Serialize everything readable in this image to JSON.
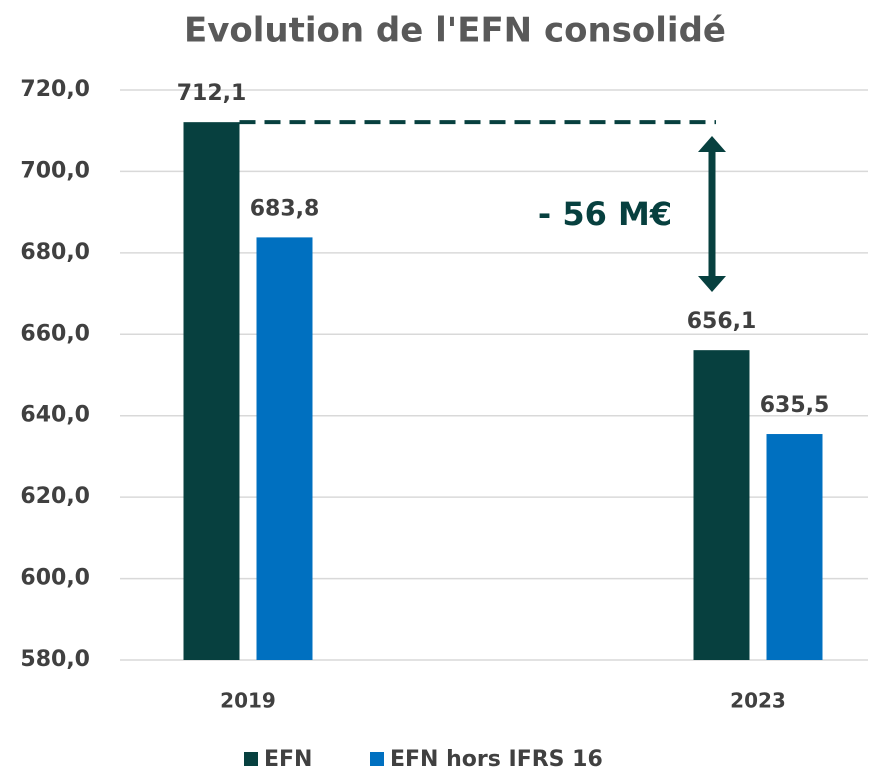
{
  "chart_data": {
    "type": "bar",
    "title": "Evolution de l'EFN consolidé",
    "categories": [
      "2019",
      "2023"
    ],
    "series": [
      {
        "name": "EFN",
        "color": "#07403f",
        "values": [
          712.1,
          656.1
        ],
        "value_labels": [
          "712,1",
          "656,1"
        ]
      },
      {
        "name": "EFN hors IFRS 16",
        "color": "#0070c0",
        "values": [
          683.8,
          635.5
        ],
        "value_labels": [
          "683,8",
          "635,5"
        ]
      }
    ],
    "ylim": [
      580,
      720
    ],
    "yticks": [
      {
        "value": 580,
        "label": "580,0"
      },
      {
        "value": 600,
        "label": "600,0"
      },
      {
        "value": 620,
        "label": "620,0"
      },
      {
        "value": 640,
        "label": "640,0"
      },
      {
        "value": 660,
        "label": "660,0"
      },
      {
        "value": 680,
        "label": "680,0"
      },
      {
        "value": 700,
        "label": "700,0"
      },
      {
        "value": 720,
        "label": "720,0"
      }
    ],
    "grid": true,
    "legend": "bottom",
    "annotation": "- 56 M€"
  }
}
